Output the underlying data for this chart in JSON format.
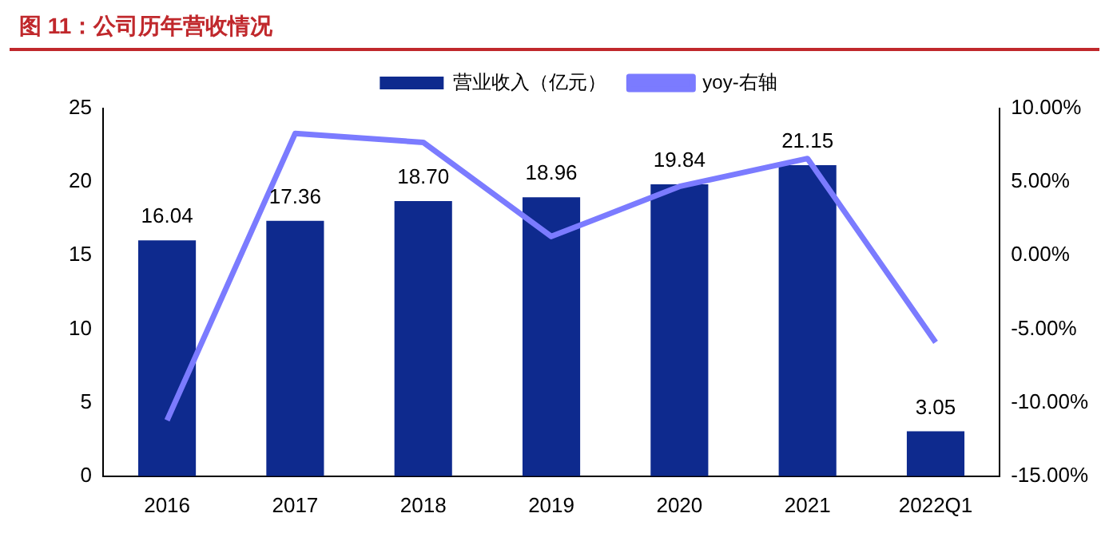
{
  "chart_data": {
    "type": "bar",
    "title": "图 11：公司历年营收情况",
    "categories": [
      "2016",
      "2017",
      "2018",
      "2019",
      "2020",
      "2021",
      "2022Q1"
    ],
    "series": [
      {
        "name": "营业收入（亿元）",
        "color": "#0e2a8e",
        "values": [
          16.04,
          17.36,
          18.7,
          18.96,
          19.84,
          21.15,
          3.05
        ],
        "value_labels": [
          "16.04",
          "17.36",
          "18.70",
          "18.96",
          "19.84",
          "21.15",
          "3.05"
        ]
      },
      {
        "name": "yoy-右轴",
        "type": "line",
        "axis": "y2",
        "color": "#7b7bff",
        "values": [
          -11.2,
          8.3,
          7.7,
          1.3,
          4.7,
          6.6,
          -5.9
        ]
      }
    ],
    "ylim": [
      0,
      25
    ],
    "yticks": [
      0,
      5,
      10,
      15,
      20,
      25
    ],
    "y2lim": [
      -15,
      10
    ],
    "y2ticks": [
      {
        "value": -15,
        "label": "-15.00%"
      },
      {
        "value": -10,
        "label": "-10.00%"
      },
      {
        "value": -5,
        "label": "-5.00%"
      },
      {
        "value": 0,
        "label": "0.00%"
      },
      {
        "value": 5,
        "label": "5.00%"
      },
      {
        "value": 10,
        "label": "10.00%"
      }
    ],
    "grid": false,
    "legend": "top",
    "marker": "none"
  }
}
